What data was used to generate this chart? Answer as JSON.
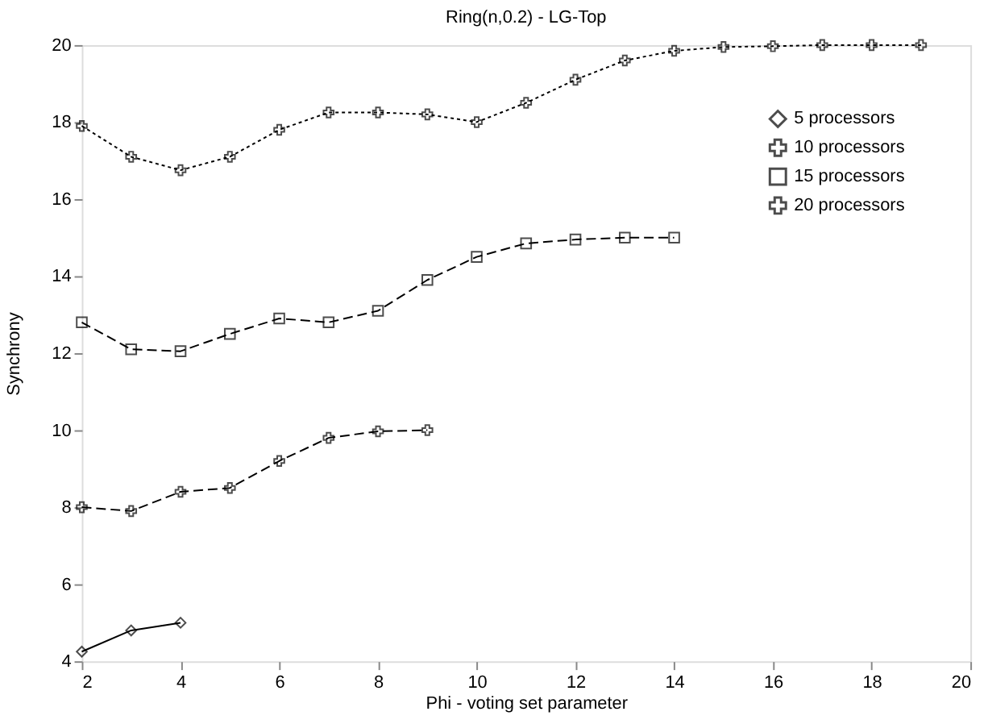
{
  "chart_data": {
    "type": "line",
    "title": "Ring(n,0.2) - LG-Top",
    "xlabel": "Phi - voting set parameter",
    "ylabel": "Synchrony",
    "xlim": [
      2,
      20
    ],
    "xticks": [
      2,
      4,
      6,
      8,
      10,
      12,
      14,
      16,
      18,
      20
    ],
    "ylim": [
      4,
      20
    ],
    "yticks": [
      4,
      6,
      8,
      10,
      12,
      14,
      16,
      18,
      20
    ],
    "grid": false,
    "legend": "top right",
    "series": [
      {
        "name": "5 processors",
        "color": "#000000",
        "marker": "diamond",
        "line_style": "solid",
        "x": [
          2,
          3,
          4
        ],
        "values": [
          4.25,
          4.8,
          5.0
        ]
      },
      {
        "name": "10 processors",
        "color": "#000000",
        "marker": "cross",
        "line_style": "dashed",
        "x": [
          2,
          3,
          4,
          5,
          6,
          7,
          8,
          9
        ],
        "values": [
          8.0,
          7.9,
          8.4,
          8.5,
          9.2,
          9.8,
          9.97,
          10.0
        ]
      },
      {
        "name": "15 processors",
        "color": "#000000",
        "marker": "square",
        "line_style": "dashed",
        "x": [
          2,
          3,
          4,
          5,
          6,
          7,
          8,
          9,
          10,
          11,
          12,
          13,
          14
        ],
        "values": [
          12.8,
          12.1,
          12.05,
          12.5,
          12.9,
          12.8,
          13.1,
          13.9,
          14.5,
          14.85,
          14.95,
          15.0,
          15.0
        ]
      },
      {
        "name": "20 processors",
        "color": "#000000",
        "marker": "cross",
        "line_style": "dotted",
        "x": [
          2,
          3,
          4,
          5,
          6,
          7,
          8,
          9,
          10,
          11,
          12,
          13,
          14,
          15,
          16,
          17,
          18,
          19
        ],
        "values": [
          17.9,
          17.1,
          16.75,
          17.1,
          17.8,
          18.25,
          18.25,
          18.2,
          18.0,
          18.5,
          19.1,
          19.6,
          19.85,
          19.95,
          19.97,
          20.0,
          20.0,
          20.0
        ]
      }
    ]
  }
}
